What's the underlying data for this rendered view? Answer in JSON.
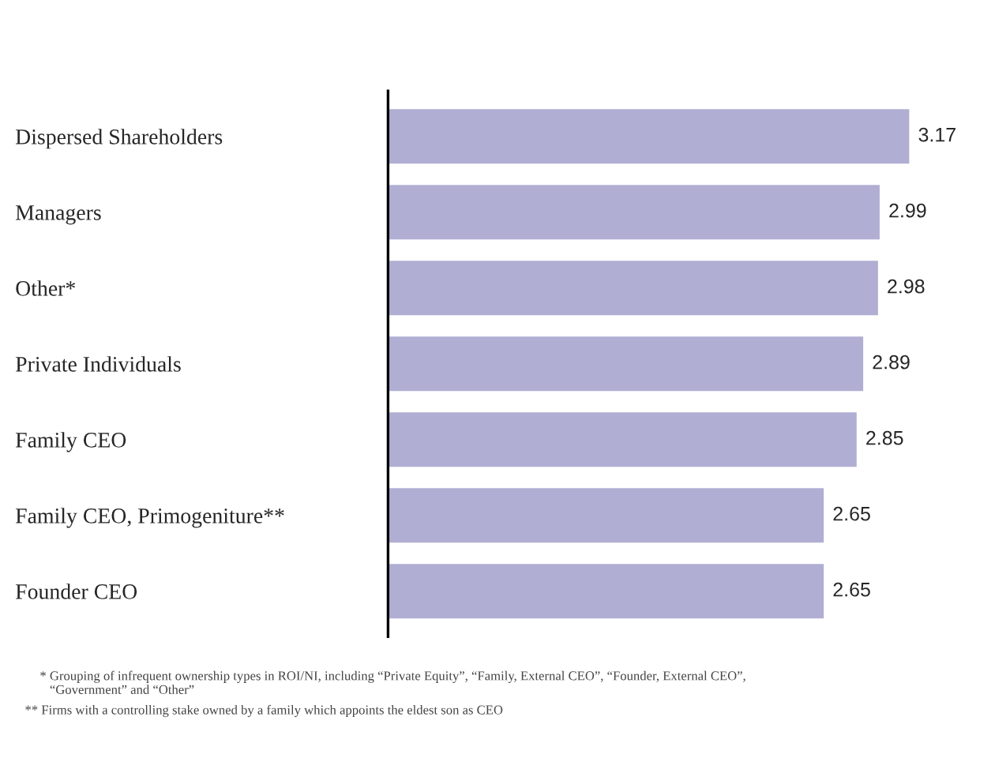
{
  "chart_data": {
    "type": "bar",
    "orientation": "horizontal",
    "categories": [
      "Dispersed Shareholders",
      "Managers",
      "Other*",
      "Private Individuals",
      "Family CEO",
      "Family CEO, Primogeniture**",
      "Founder CEO"
    ],
    "values": [
      3.17,
      2.99,
      2.98,
      2.89,
      2.85,
      2.65,
      2.65
    ],
    "color": "#b1aed3",
    "data_labels": true,
    "tick_labels": "y",
    "grid": false,
    "legend": false,
    "annotations": [
      "* Grouping of infrequent ownership types in ROI/NI, including “Private Equity”, “Family, External CEO”, “Founder, External CEO”,\n   “Government” and “Other”",
      "** Firms with a controlling stake owned by a family which appoints the eldest son as CEO"
    ]
  }
}
